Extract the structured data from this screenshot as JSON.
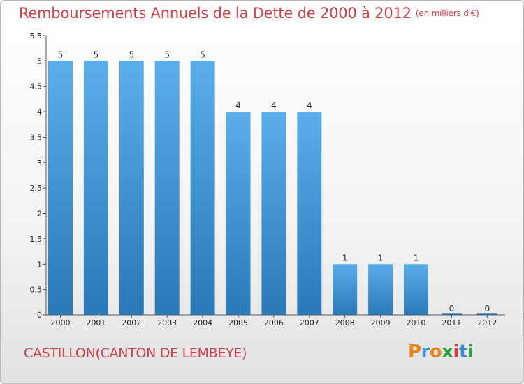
{
  "header": {
    "title": "Remboursements Annuels de la Dette de 2000 à 2012",
    "unit": "(en milliers d'€)"
  },
  "footer": {
    "commune": "CASTILLON(CANTON DE LEMBEYE)"
  },
  "logo": {
    "letters": [
      "P",
      "r",
      "o",
      "x",
      "i",
      "t",
      "i"
    ],
    "colors": [
      "#e8861a",
      "#3a8fd6",
      "#e8861a",
      "#2e9e3e",
      "#d83a3a",
      "#3a8fd6",
      "#2e9e3e"
    ]
  },
  "chart_data": {
    "type": "bar",
    "categories": [
      "2000",
      "2001",
      "2002",
      "2003",
      "2004",
      "2005",
      "2006",
      "2007",
      "2008",
      "2009",
      "2010",
      "2011",
      "2012"
    ],
    "values": [
      5,
      5,
      5,
      5,
      5,
      4,
      4,
      4,
      1,
      1,
      1,
      0,
      0
    ],
    "ylim": [
      0,
      5.5
    ],
    "yticks": [
      "0",
      "0.5",
      "1",
      "1.5",
      "2",
      "2.5",
      "3",
      "3.5",
      "4",
      "4.5",
      "5",
      "5.5"
    ],
    "bar_color_top": "#5aaeea",
    "bar_color_bottom": "#2a78b8",
    "grid": false
  }
}
